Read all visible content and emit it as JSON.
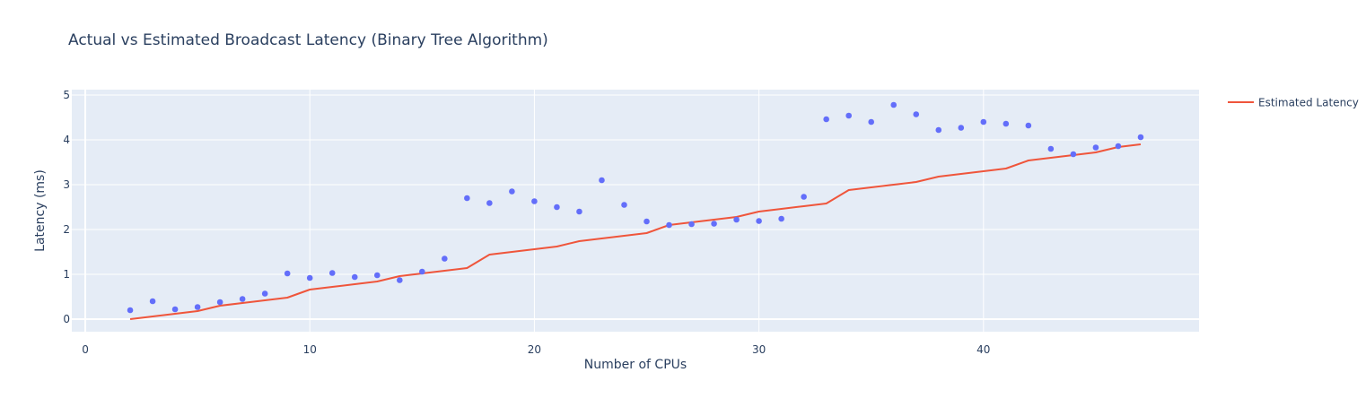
{
  "chart_data": {
    "type": "scatter",
    "title": "Actual vs Estimated Broadcast Latency (Binary Tree Algorithm)",
    "xlabel": "Number of CPUs",
    "ylabel": "Latency (ms)",
    "xlim": [
      -0.6,
      49.6
    ],
    "ylim": [
      -0.28,
      5.12
    ],
    "x_ticks": [
      0,
      10,
      20,
      30,
      40
    ],
    "y_ticks": [
      0,
      1,
      2,
      3,
      4,
      5
    ],
    "grid": true,
    "legend_position": "top-right",
    "colors": {
      "plot_bg": "#e5ecf6",
      "grid": "#ffffff",
      "text": "#2a3f5f",
      "points": "#636efa",
      "line": "#ef553b"
    },
    "series": [
      {
        "type": "scatter",
        "x": [
          2,
          3,
          4,
          5,
          6,
          7,
          8,
          9,
          10,
          11,
          12,
          13,
          14,
          15,
          16,
          17,
          18,
          19,
          20,
          21,
          22,
          23,
          24,
          25,
          26,
          27,
          28,
          29,
          30,
          31,
          32,
          33,
          34,
          35,
          36,
          37,
          38,
          39,
          40,
          41,
          42,
          43,
          44,
          45,
          46,
          47
        ],
        "y": [
          0.2,
          0.4,
          0.22,
          0.27,
          0.38,
          0.45,
          0.57,
          1.02,
          0.92,
          1.03,
          0.94,
          0.98,
          0.87,
          1.06,
          1.35,
          2.7,
          2.59,
          2.85,
          2.63,
          2.5,
          2.4,
          3.1,
          2.55,
          2.18,
          2.1,
          2.12,
          2.13,
          2.22,
          2.19,
          2.24,
          2.73,
          4.46,
          4.54,
          4.4,
          4.78,
          4.57,
          4.22,
          4.27,
          4.4,
          4.36,
          4.32,
          3.8,
          3.68,
          3.83,
          3.86,
          4.06
        ]
      },
      {
        "type": "line",
        "name": "Estimated Latency",
        "x": [
          2,
          3,
          4,
          5,
          6,
          7,
          8,
          9,
          10,
          11,
          12,
          13,
          14,
          15,
          16,
          17,
          18,
          19,
          20,
          21,
          22,
          23,
          24,
          25,
          26,
          27,
          28,
          29,
          30,
          31,
          32,
          33,
          34,
          35,
          36,
          37,
          38,
          39,
          40,
          41,
          42,
          43,
          44,
          45,
          46,
          47
        ],
        "y": [
          0.0,
          0.06,
          0.12,
          0.18,
          0.3,
          0.36,
          0.42,
          0.48,
          0.66,
          0.72,
          0.78,
          0.84,
          0.96,
          1.02,
          1.08,
          1.14,
          1.44,
          1.5,
          1.56,
          1.62,
          1.74,
          1.8,
          1.86,
          1.92,
          2.1,
          2.16,
          2.22,
          2.28,
          2.4,
          2.46,
          2.52,
          2.58,
          2.88,
          2.94,
          3.0,
          3.06,
          3.18,
          3.24,
          3.3,
          3.36,
          3.54,
          3.6,
          3.66,
          3.72,
          3.84,
          3.9
        ]
      }
    ]
  }
}
